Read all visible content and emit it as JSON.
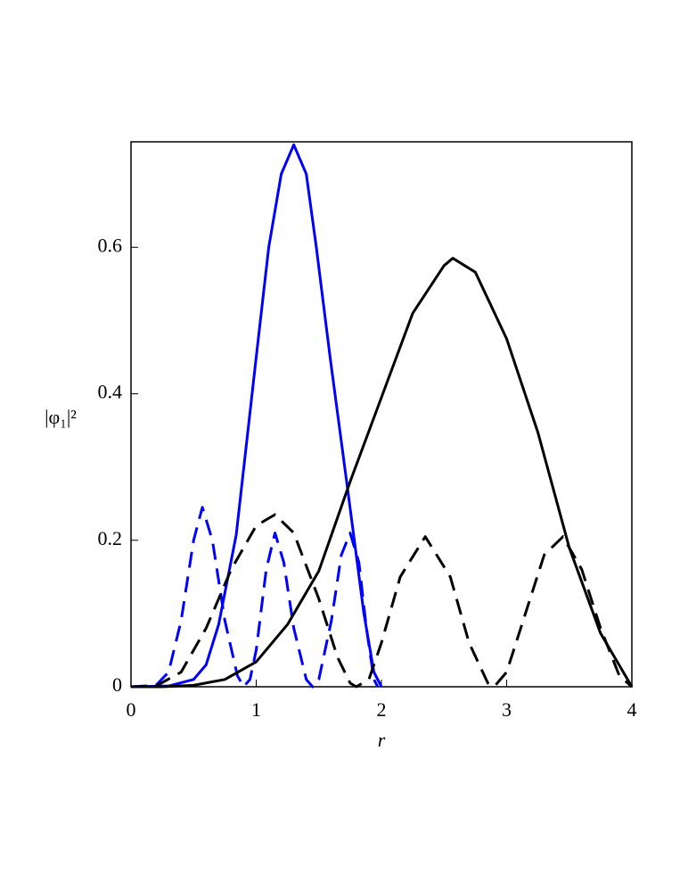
{
  "chart_data": {
    "type": "line",
    "xlabel": "r",
    "ylabel": "|φ₁|²",
    "xlim": [
      0,
      4
    ],
    "ylim": [
      0,
      0.744
    ],
    "xticks": [
      0,
      1,
      2,
      3,
      4
    ],
    "yticks": [
      0,
      0.2,
      0.4,
      0.6
    ],
    "series": [
      {
        "color": "#0000ff",
        "dash": false,
        "x": [
          0,
          0.3,
          0.5,
          0.6,
          0.7,
          0.84,
          1.0,
          1.1,
          1.2,
          1.3,
          1.4,
          1.48,
          1.59,
          1.73,
          1.86,
          1.94,
          2.0
        ],
        "values": [
          0,
          0.001,
          0.01,
          0.03,
          0.085,
          0.207,
          0.45,
          0.6,
          0.7,
          0.74,
          0.7,
          0.6,
          0.45,
          0.27,
          0.1,
          0.02,
          0
        ]
      },
      {
        "color": "#0000ff",
        "dash": true,
        "x": [
          0,
          0.2,
          0.3,
          0.4,
          0.5,
          0.57,
          0.65,
          0.75,
          0.85,
          0.9,
          0.95,
          1.0,
          1.08,
          1.15,
          1.22,
          1.3,
          1.4,
          1.45,
          1.5,
          1.6,
          1.68,
          1.75,
          1.82,
          1.88,
          1.94,
          1.97
        ],
        "values": [
          0,
          0.002,
          0.02,
          0.09,
          0.2,
          0.245,
          0.2,
          0.09,
          0.015,
          0,
          0.01,
          0.05,
          0.16,
          0.21,
          0.17,
          0.08,
          0.01,
          0,
          0.01,
          0.09,
          0.18,
          0.21,
          0.17,
          0.08,
          0.01,
          0
        ]
      },
      {
        "color": "#000000",
        "dash": false,
        "x": [
          0,
          0.25,
          0.5,
          0.75,
          1.0,
          1.25,
          1.5,
          1.75,
          2.0,
          2.25,
          2.5,
          2.57,
          2.75,
          3.0,
          3.25,
          3.5,
          3.75,
          4.0
        ],
        "values": [
          0,
          0,
          0.002,
          0.01,
          0.034,
          0.085,
          0.158,
          0.28,
          0.395,
          0.51,
          0.575,
          0.585,
          0.566,
          0.475,
          0.347,
          0.19,
          0.073,
          0
        ]
      },
      {
        "color": "#000000",
        "dash": true,
        "x": [
          0,
          0.2,
          0.4,
          0.6,
          0.8,
          1.0,
          1.15,
          1.3,
          1.5,
          1.65,
          1.75,
          1.8,
          1.9,
          2.0,
          2.15,
          2.35,
          2.55,
          2.7,
          2.85,
          2.9,
          3.0,
          3.15,
          3.3,
          3.45,
          3.6,
          3.75,
          3.9,
          4.0
        ],
        "values": [
          0,
          0.001,
          0.02,
          0.08,
          0.16,
          0.22,
          0.235,
          0.21,
          0.12,
          0.04,
          0.005,
          0,
          0.01,
          0.06,
          0.15,
          0.205,
          0.15,
          0.06,
          0.005,
          0,
          0.02,
          0.1,
          0.18,
          0.205,
          0.16,
          0.08,
          0.015,
          0
        ]
      }
    ]
  }
}
